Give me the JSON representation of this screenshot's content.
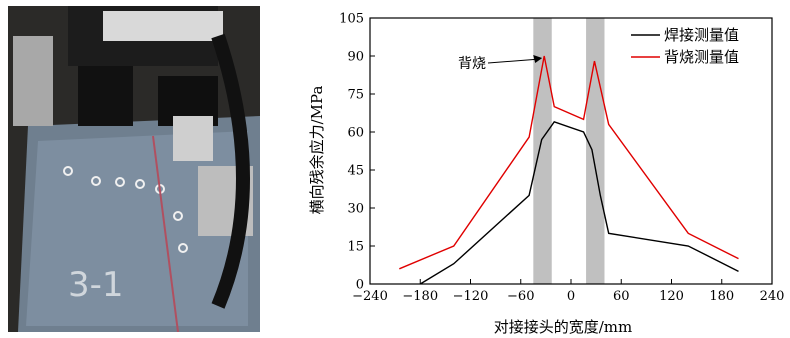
{
  "photo": {
    "description_icon": "welding-photo-icon"
  },
  "chart_data": {
    "type": "line",
    "xlabel": "对接接头的宽度/mm",
    "ylabel": "横向残余应力/MPa",
    "xlim": [
      -240,
      240
    ],
    "ylim": [
      0,
      105
    ],
    "xticks": [
      -240,
      -180,
      -120,
      -60,
      0,
      60,
      120,
      180,
      240
    ],
    "yticks": [
      0,
      15,
      30,
      45,
      60,
      75,
      90,
      105
    ],
    "xtick_labels": [
      "−240",
      "−180",
      "−120",
      "−60",
      "0",
      "60",
      "120",
      "180",
      "240"
    ],
    "ytick_labels": [
      "0",
      "15",
      "30",
      "45",
      "60",
      "75",
      "90",
      "105"
    ],
    "grid": false,
    "legend_position": "top-right",
    "shaded_bands": [
      {
        "x0": -45,
        "x1": -23,
        "color": "#c0c0c0"
      },
      {
        "x0": 18,
        "x1": 40,
        "color": "#c0c0c0"
      }
    ],
    "series": [
      {
        "name": "焊接测量值",
        "color": "#000000",
        "x": [
          -180,
          -140,
          -50,
          -35,
          -20,
          15,
          25,
          35,
          45,
          140,
          200
        ],
        "y": [
          0,
          8,
          35,
          57,
          64,
          60,
          53,
          35,
          20,
          15,
          5
        ]
      },
      {
        "name": "背烧测量值",
        "color": "#e00000",
        "x": [
          -205,
          -140,
          -50,
          -32,
          -20,
          15,
          28,
          45,
          140,
          200
        ],
        "y": [
          6,
          15,
          58,
          90,
          70,
          65,
          88,
          63,
          20,
          10
        ]
      }
    ],
    "annotations": [
      {
        "text": "背烧",
        "arrow_to_x": -32,
        "arrow_to_y": 90
      }
    ]
  }
}
